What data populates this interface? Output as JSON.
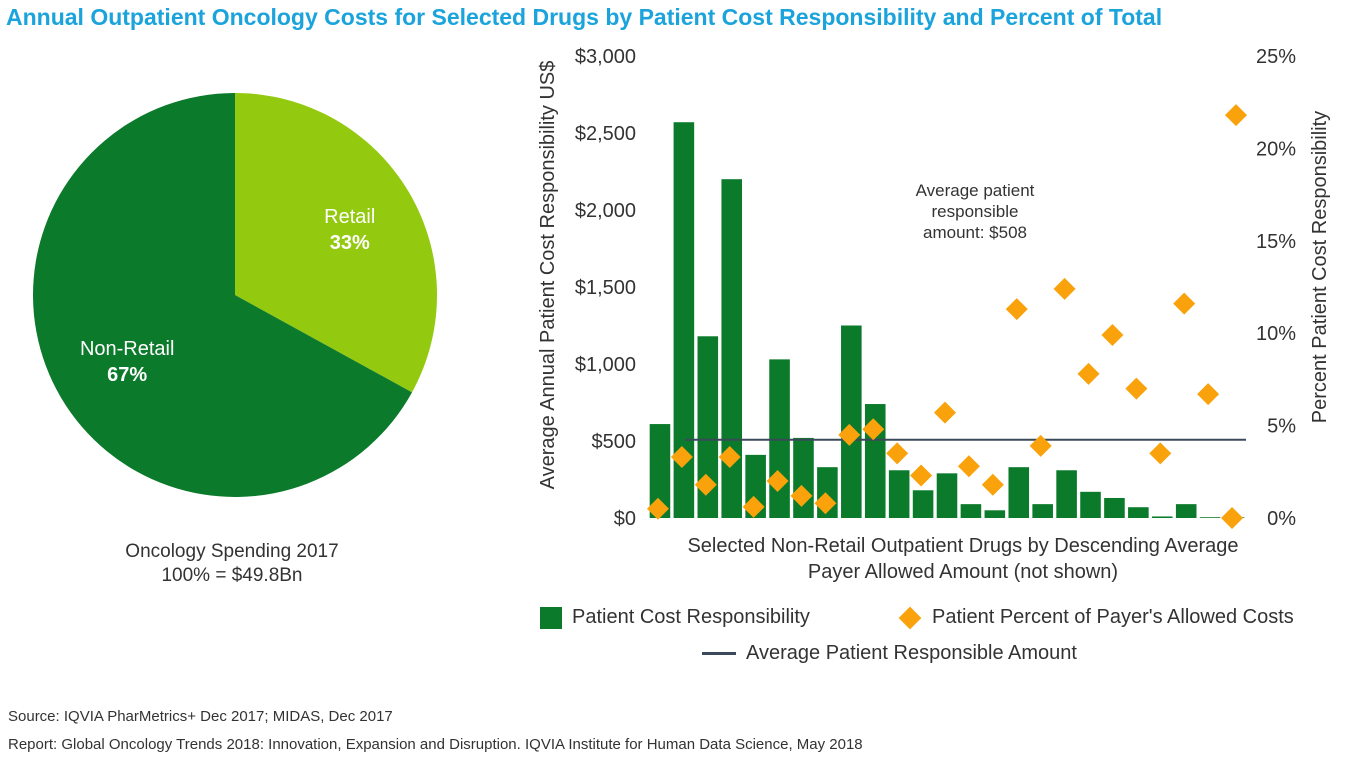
{
  "title": "Annual Outpatient Oncology Costs for Selected Drugs by Patient Cost Responsibility and Percent of Total",
  "pie": {
    "caption_line1": "Oncology Spending 2017",
    "caption_line2": "100% = $49.8Bn",
    "slices": [
      {
        "label": "Retail",
        "value_label": "33%",
        "value": 33,
        "color": "#93c90e"
      },
      {
        "label": "Non-Retail",
        "value_label": "67%",
        "value": 67,
        "color": "#0b7a2b"
      }
    ]
  },
  "chart_data": [
    {
      "type": "pie",
      "title": "Oncology Spending 2017",
      "subtitle": "100% = $49.8Bn",
      "categories": [
        "Retail",
        "Non-Retail"
      ],
      "values": [
        33,
        67
      ],
      "unit": "%"
    },
    {
      "type": "bar",
      "xlabel": "Selected Non-Retail Outpatient Drugs by Descending Average Payer Allowed Amount (not shown)",
      "ylabel": "Average Annual Patient Cost Responsibility US$",
      "y2label": "Percent Patient Cost Responsibility",
      "ylim": [
        0,
        3000
      ],
      "y2lim": [
        0,
        25
      ],
      "yticks": [
        "$0",
        "$500",
        "$1,000",
        "$1,500",
        "$2,000",
        "$2,500",
        "$3,000"
      ],
      "y2ticks": [
        "0%",
        "5%",
        "10%",
        "15%",
        "20%",
        "25%"
      ],
      "grid": false,
      "legend": "bottom",
      "series": [
        {
          "name": "Patient Cost Responsibility",
          "type": "bar",
          "color": "#0b7a2b",
          "values": [
            610,
            2570,
            1180,
            2200,
            410,
            1030,
            520,
            330,
            1250,
            740,
            310,
            180,
            290,
            90,
            50,
            330,
            90,
            310,
            170,
            130,
            70,
            10,
            90,
            5,
            5
          ]
        },
        {
          "name": "Patient Percent of Payer's Allowed Costs",
          "type": "scatter",
          "marker": "diamond",
          "color": "#f9a20b",
          "axis": "right",
          "values": [
            0.5,
            3.3,
            1.8,
            3.3,
            0.6,
            2.0,
            1.2,
            0.8,
            4.5,
            4.8,
            3.5,
            2.3,
            5.7,
            2.8,
            1.8,
            11.3,
            3.9,
            12.4,
            7.8,
            9.9,
            7.0,
            3.5,
            11.6,
            6.7,
            0.0
          ]
        },
        {
          "name": "Average Patient Responsible Amount",
          "type": "line",
          "color": "#3b4a5a",
          "value": 508
        }
      ],
      "annotations": [
        {
          "text_lines": [
            "Average patient",
            "responsible",
            "amount: $508"
          ]
        }
      ]
    }
  ],
  "footer": {
    "source": "Source: IQVIA PharMetrics+ Dec 2017; MIDAS, Dec 2017",
    "report": "Report: Global Oncology Trends 2018: Innovation, Expansion and Disruption. IQVIA Institute for Human Data Science, May 2018"
  }
}
